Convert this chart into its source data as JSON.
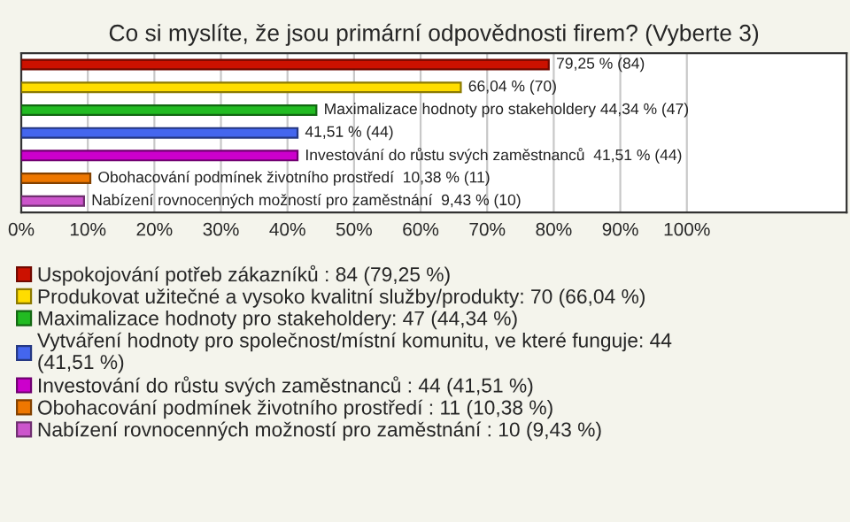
{
  "chart_data": {
    "type": "bar",
    "orientation": "horizontal",
    "title": "Co si myslíte, že jsou primární odpovědnosti firem? (Vyberte 3)",
    "categories": [
      null,
      null,
      null,
      null,
      null,
      null,
      null
    ],
    "series": [
      {
        "name": "Uspokojování potřeb zákazníků : 84 (79,25 %)",
        "color": "#cc1100",
        "values": [
          79.25,
          null,
          null,
          null,
          null,
          null,
          null
        ],
        "value_labels": [
          "79,25 % (84)",
          null,
          null,
          null,
          null,
          null,
          null
        ]
      },
      {
        "name": "Produkovat užitečné a vysoko kvalitní služby/produkty: 70 (66,04 %)",
        "color": "#ffdd00",
        "values": [
          null,
          66.04,
          null,
          null,
          null,
          null,
          null
        ],
        "value_labels": [
          null,
          "66,04 % (70)",
          null,
          null,
          null,
          null,
          null
        ]
      },
      {
        "name": "Maximalizace hodnoty pro stakeholdery: 47 (44,34 %)",
        "color": "#22bb22",
        "values": [
          null,
          null,
          44.34,
          null,
          null,
          null,
          null
        ],
        "value_labels": [
          null,
          null,
          "Maximalizace hodnoty pro stakeholdery 44,34 % (47)",
          null,
          null,
          null,
          null
        ]
      },
      {
        "name": "Vytváření hodnoty pro společnost/místní komunitu, ve které funguje: 44\n(41,51 %)",
        "color": "#4466ee",
        "values": [
          null,
          null,
          null,
          41.51,
          null,
          null,
          null
        ],
        "value_labels": [
          null,
          null,
          null,
          "41,51 % (44)",
          null,
          null,
          null
        ]
      },
      {
        "name": "Investování do růstu svých zaměstnanců : 44 (41,51 %)",
        "color": "#cc00cc",
        "values": [
          null,
          null,
          null,
          null,
          41.51,
          null,
          null
        ],
        "value_labels": [
          null,
          null,
          null,
          null,
          "Investování do růstu svých zaměstnanců  41,51 % (44)",
          null,
          null
        ]
      },
      {
        "name": "Obohacování podmínek životního prostředí : 11 (10,38 %)",
        "color": "#ee7700",
        "values": [
          null,
          null,
          null,
          null,
          null,
          10.38,
          null
        ],
        "value_labels": [
          null,
          null,
          null,
          null,
          null,
          "Obohacování podmínek životního prostředí  10,38 % (11)",
          null
        ]
      },
      {
        "name": "Nabízení rovnocenných možností pro zaměstnání : 10 (9,43 %)",
        "color": "#cc55cc",
        "values": [
          null,
          null,
          null,
          null,
          null,
          null,
          9.43
        ],
        "value_labels": [
          null,
          null,
          null,
          null,
          null,
          null,
          "Nabízení rovnocenných možností pro zaměstnání  9,43 % (10)"
        ]
      }
    ],
    "xlim": [
      0,
      124
    ],
    "xticks": [
      {
        "value": 0,
        "label": "0%"
      },
      {
        "value": 10,
        "label": "10%"
      },
      {
        "value": 20,
        "label": "20%"
      },
      {
        "value": 30,
        "label": "30%"
      },
      {
        "value": 40,
        "label": "40%"
      },
      {
        "value": 50,
        "label": "50%"
      },
      {
        "value": 60,
        "label": "60%"
      },
      {
        "value": 70,
        "label": "70%"
      },
      {
        "value": 80,
        "label": "80%"
      },
      {
        "value": 90,
        "label": "90%"
      },
      {
        "value": 100,
        "label": "100%"
      }
    ],
    "grid": "x",
    "tick_labels": "x",
    "legend": "bottom"
  }
}
